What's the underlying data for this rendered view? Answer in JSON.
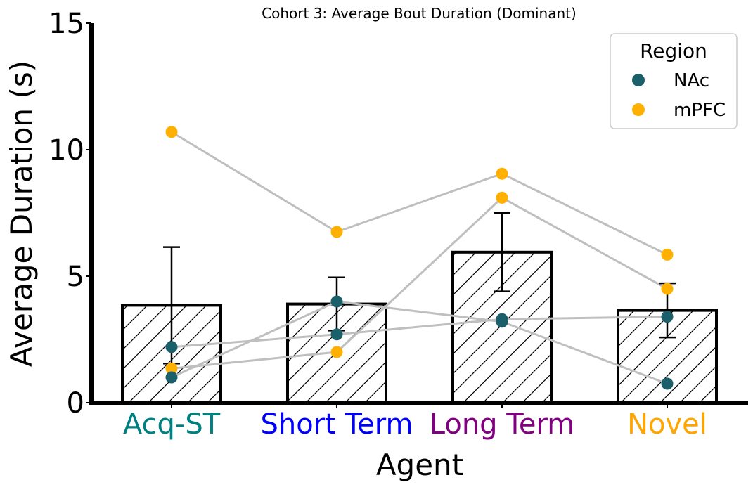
{
  "chart_data": {
    "type": "bar",
    "title": "Cohort 3: Average Bout Duration (Dominant)",
    "xlabel": "Agent",
    "ylabel": "Average Duration (s)",
    "ylim": [
      0,
      15
    ],
    "yticks": [
      "0",
      "5",
      "10",
      "15"
    ],
    "categories": [
      "Acq-ST",
      "Short Term",
      "Long Term",
      "Novel"
    ],
    "category_colors": [
      "#008080",
      "#0000ff",
      "#800080",
      "#ffa500"
    ],
    "bar_values": [
      3.85,
      3.9,
      5.95,
      3.65
    ],
    "error": [
      2.3,
      1.05,
      1.55,
      1.07
    ],
    "bar_style": "white fill, black outline, diagonal hatch",
    "connector_color": "#bfbfbf",
    "legend": {
      "title": "Region",
      "placement": "top-right",
      "entries": [
        {
          "label": "NAc",
          "color": "#1b5f6b"
        },
        {
          "label": "mPFC",
          "color": "#ffb000"
        }
      ]
    },
    "series": [
      {
        "region": "mPFC",
        "values": [
          10.7,
          6.75,
          9.05,
          5.85
        ]
      },
      {
        "region": "mPFC",
        "values": [
          1.35,
          2.0,
          8.1,
          4.5
        ]
      },
      {
        "region": "NAc",
        "values": [
          1.0,
          4.0,
          3.2,
          0.75
        ]
      },
      {
        "region": "NAc",
        "values": [
          2.2,
          2.7,
          3.3,
          3.4
        ]
      }
    ]
  }
}
